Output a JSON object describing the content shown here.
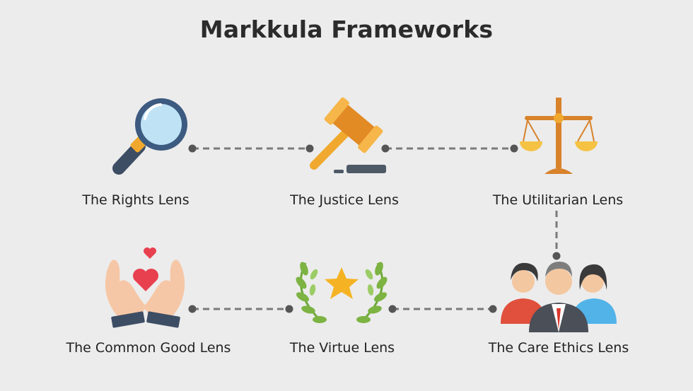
{
  "title": "Markkula Frameworks",
  "lenses": [
    {
      "label": "The Rights Lens",
      "icon": "magnifying-glass-icon"
    },
    {
      "label": "The Justice Lens",
      "icon": "gavel-icon"
    },
    {
      "label": "The Utilitarian Lens",
      "icon": "balance-scale-icon"
    },
    {
      "label": "The Common Good Lens",
      "icon": "hands-heart-icon"
    },
    {
      "label": "The Virtue Lens",
      "icon": "laurel-star-icon"
    },
    {
      "label": "The Care Ethics Lens",
      "icon": "people-group-icon"
    }
  ],
  "colors": {
    "background": "#ececec",
    "connector": "#7a7a7a",
    "node": "#555555",
    "text": "#222222"
  }
}
